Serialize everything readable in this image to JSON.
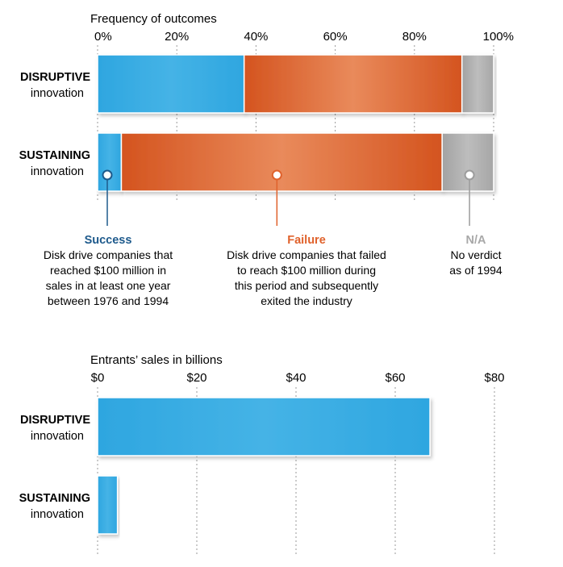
{
  "chart_data": [
    {
      "type": "bar",
      "orientation": "horizontal",
      "stacked": true,
      "xlabel": "Frequency of outcomes",
      "xlim": [
        0,
        100
      ],
      "ticks": [
        "0%",
        "20%",
        "40%",
        "60%",
        "80%",
        "100%"
      ],
      "categories": [
        {
          "bold": "DISRUPTIVE",
          "sub": "innovation"
        },
        {
          "bold": "SUSTAINING",
          "sub": "innovation"
        }
      ],
      "series": [
        {
          "name": "Success",
          "color": "#33a9e2",
          "values": [
            37,
            6
          ],
          "description": [
            "Disk drive companies that",
            "reached $100 million in",
            "sales in at least one year",
            "between 1976 and 1994"
          ]
        },
        {
          "name": "Failure",
          "color": "#e0622c",
          "values": [
            55,
            81
          ],
          "description": [
            "Disk drive companies that failed",
            "to reach $100 million during",
            "this period and subsequently",
            "exited the industry"
          ]
        },
        {
          "name": "N/A",
          "color": "#a9a9a9",
          "values": [
            8,
            13
          ],
          "description": [
            "No verdict",
            "as of 1994"
          ]
        }
      ],
      "grid": true,
      "legend": "bottom"
    },
    {
      "type": "bar",
      "orientation": "horizontal",
      "xlabel": "Entrants’ sales in billions",
      "xlim": [
        0,
        80
      ],
      "ticks": [
        "$0",
        "$20",
        "$40",
        "$60",
        "$80"
      ],
      "categories": [
        {
          "bold": "DISRUPTIVE",
          "sub": "innovation"
        },
        {
          "bold": "SUSTAINING",
          "sub": "innovation"
        }
      ],
      "values": [
        67,
        4
      ],
      "color": "#33a9e2",
      "grid": true
    }
  ]
}
